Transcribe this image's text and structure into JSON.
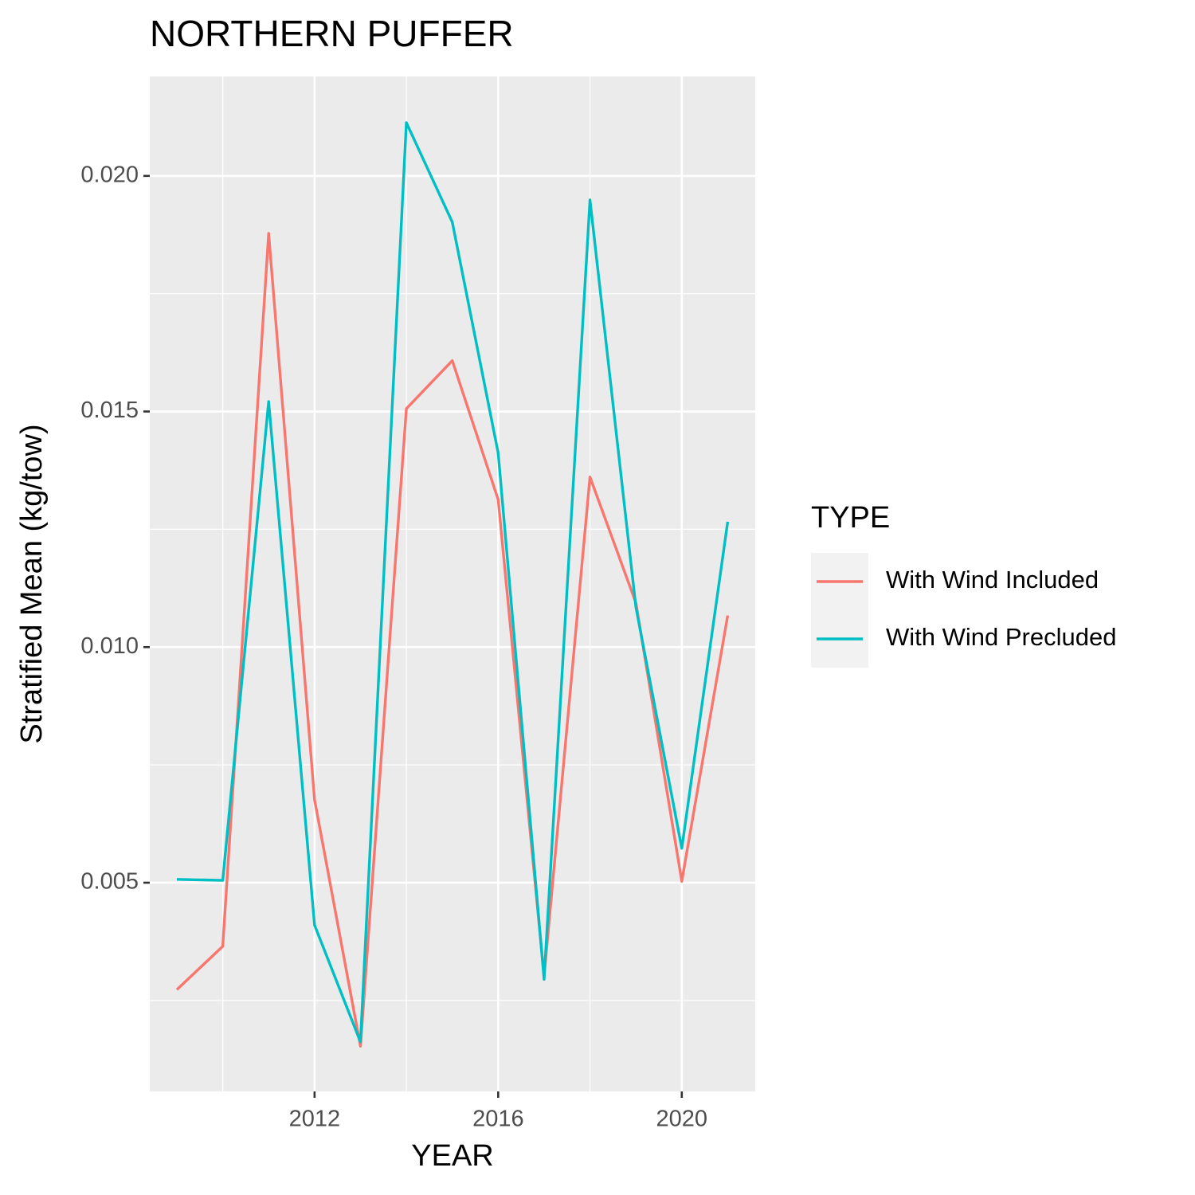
{
  "chart_data": {
    "type": "line",
    "title": "NORTHERN PUFFER",
    "x_label": "YEAR",
    "y_label": "Stratified Mean (kg/tow)",
    "x": [
      2009,
      2010,
      2011,
      2012,
      2013,
      2014,
      2015,
      2016,
      2017,
      2018,
      2019,
      2020,
      2021
    ],
    "series": [
      {
        "name": "With Wind Included",
        "color": "#f8766d",
        "values": [
          0.00273,
          0.00365,
          0.01878,
          0.00676,
          0.00153,
          0.01506,
          0.01608,
          0.01313,
          0.00302,
          0.01361,
          0.01094,
          0.00503,
          0.01067
        ]
      },
      {
        "name": "With Wind Precluded",
        "color": "#00bfc4",
        "values": [
          0.00507,
          0.00505,
          0.01521,
          0.0041,
          0.00162,
          0.02113,
          0.01902,
          0.01412,
          0.00295,
          0.01949,
          0.01085,
          0.00573,
          0.01266
        ]
      }
    ],
    "xlim": [
      2008.41,
      2021.6
    ],
    "ylim": [
      0.00057,
      0.02211
    ],
    "xticks": [
      2012,
      2016,
      2020
    ],
    "xminorticks": [
      2010,
      2014,
      2018
    ],
    "yticks": [
      0.005,
      {
        "value": 0.01,
        "label": "0.010"
      },
      0.015,
      {
        "value": 0.02,
        "label": "0.020"
      }
    ],
    "yminorticks": [
      0.0025,
      0.0075,
      0.0125,
      0.0175
    ],
    "legend_title": "TYPE",
    "legend_position": "right",
    "grid": true
  }
}
